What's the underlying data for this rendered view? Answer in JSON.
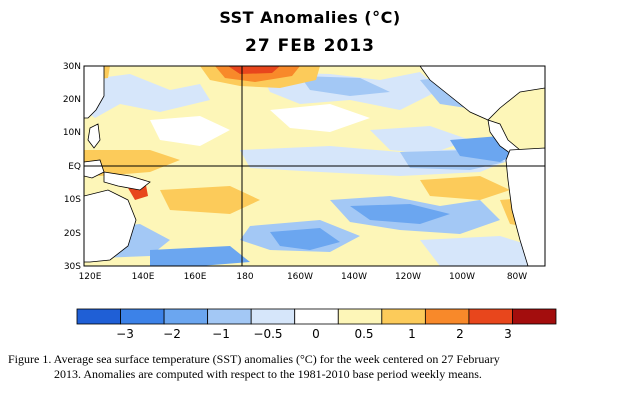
{
  "title": "SST Anomalies (°C)",
  "subtitle": "27 FEB 2013",
  "lat_labels": [
    "30N",
    "20N",
    "10N",
    "EQ",
    "10S",
    "20S",
    "30S"
  ],
  "lon_labels": [
    "120E",
    "140E",
    "160E",
    "180",
    "160W",
    "140W",
    "120W",
    "100W",
    "80W"
  ],
  "colorbar": {
    "labels": [
      "−3",
      "−2",
      "−1",
      "−0.5",
      "0",
      "0.5",
      "1",
      "2",
      "3"
    ],
    "colors": [
      "#1f5fd6",
      "#3c82e8",
      "#6ba6f0",
      "#a3c8f5",
      "#d6e6fa",
      "#ffffff",
      "#fdf6b8",
      "#fccb5a",
      "#f8892a",
      "#e8461c",
      "#a30d0d"
    ]
  },
  "caption": {
    "line1": "Figure 1. Average sea surface temperature (SST) anomalies (°C) for the week centered on 27 February",
    "line2": "2013.   Anomalies are computed with respect to the 1981-2010 base period weekly means."
  },
  "map_colors": {
    "ocean_base": "#fdf6b8",
    "land": "#ffffff",
    "coast": "#000000"
  }
}
